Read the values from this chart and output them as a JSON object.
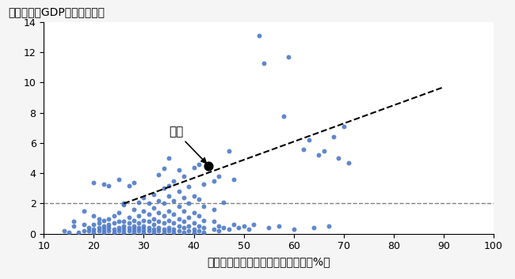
{
  "title_y": "一人あたりGDP（万米ドル）",
  "title_x": "金融リテラシーのある成人の割合（%）",
  "japan_label": "日本",
  "japan_x": 43,
  "japan_y": 4.5,
  "scatter_color": "#4472C4",
  "japan_color": "#000000",
  "hline_y": 2.0,
  "hline_color": "#808080",
  "trend_x": [
    26,
    90
  ],
  "trend_y": [
    2.0,
    9.7
  ],
  "xlim": [
    10,
    100
  ],
  "ylim": [
    0,
    14
  ],
  "xticks": [
    10,
    20,
    30,
    40,
    50,
    60,
    70,
    80,
    90,
    100
  ],
  "yticks": [
    0,
    2,
    4,
    6,
    8,
    10,
    12,
    14
  ],
  "scatter_data": [
    [
      14,
      0.2
    ],
    [
      15,
      0.1
    ],
    [
      16,
      0.5
    ],
    [
      16,
      0.8
    ],
    [
      17,
      0.1
    ],
    [
      18,
      0.2
    ],
    [
      18,
      0.6
    ],
    [
      18,
      1.5
    ],
    [
      19,
      0.2
    ],
    [
      19,
      0.4
    ],
    [
      20,
      0.1
    ],
    [
      20,
      0.3
    ],
    [
      20,
      0.6
    ],
    [
      20,
      1.2
    ],
    [
      20,
      3.4
    ],
    [
      21,
      0.2
    ],
    [
      21,
      0.4
    ],
    [
      21,
      0.7
    ],
    [
      21,
      1.0
    ],
    [
      22,
      0.1
    ],
    [
      22,
      0.3
    ],
    [
      22,
      0.5
    ],
    [
      22,
      0.9
    ],
    [
      22,
      3.3
    ],
    [
      23,
      0.2
    ],
    [
      23,
      0.4
    ],
    [
      23,
      0.6
    ],
    [
      23,
      1.0
    ],
    [
      23,
      3.2
    ],
    [
      24,
      0.1
    ],
    [
      24,
      0.3
    ],
    [
      24,
      0.7
    ],
    [
      24,
      1.2
    ],
    [
      25,
      0.2
    ],
    [
      25,
      0.4
    ],
    [
      25,
      0.8
    ],
    [
      25,
      1.4
    ],
    [
      25,
      3.6
    ],
    [
      26,
      0.1
    ],
    [
      26,
      0.3
    ],
    [
      26,
      0.5
    ],
    [
      26,
      0.8
    ],
    [
      26,
      1.9
    ],
    [
      26,
      2.0
    ],
    [
      27,
      0.2
    ],
    [
      27,
      0.4
    ],
    [
      27,
      0.7
    ],
    [
      27,
      1.1
    ],
    [
      27,
      3.2
    ],
    [
      28,
      0.1
    ],
    [
      28,
      0.3
    ],
    [
      28,
      0.5
    ],
    [
      28,
      0.9
    ],
    [
      28,
      1.6
    ],
    [
      28,
      3.4
    ],
    [
      29,
      0.2
    ],
    [
      29,
      0.4
    ],
    [
      29,
      0.7
    ],
    [
      29,
      1.2
    ],
    [
      29,
      2.1
    ],
    [
      30,
      0.1
    ],
    [
      30,
      0.3
    ],
    [
      30,
      0.5
    ],
    [
      30,
      0.9
    ],
    [
      30,
      1.5
    ],
    [
      30,
      2.4
    ],
    [
      31,
      0.2
    ],
    [
      31,
      0.4
    ],
    [
      31,
      0.8
    ],
    [
      31,
      1.3
    ],
    [
      31,
      2.0
    ],
    [
      32,
      0.1
    ],
    [
      32,
      0.3
    ],
    [
      32,
      0.6
    ],
    [
      32,
      1.0
    ],
    [
      32,
      1.7
    ],
    [
      32,
      2.6
    ],
    [
      33,
      0.2
    ],
    [
      33,
      0.4
    ],
    [
      33,
      0.8
    ],
    [
      33,
      1.4
    ],
    [
      33,
      2.2
    ],
    [
      33,
      3.9
    ],
    [
      34,
      0.1
    ],
    [
      34,
      0.3
    ],
    [
      34,
      0.7
    ],
    [
      34,
      1.2
    ],
    [
      34,
      2.0
    ],
    [
      34,
      3.0
    ],
    [
      34,
      4.3
    ],
    [
      35,
      0.2
    ],
    [
      35,
      0.4
    ],
    [
      35,
      0.9
    ],
    [
      35,
      1.5
    ],
    [
      35,
      2.5
    ],
    [
      35,
      3.2
    ],
    [
      35,
      5.0
    ],
    [
      36,
      0.1
    ],
    [
      36,
      0.3
    ],
    [
      36,
      0.7
    ],
    [
      36,
      1.3
    ],
    [
      36,
      2.2
    ],
    [
      36,
      3.5
    ],
    [
      37,
      0.2
    ],
    [
      37,
      0.5
    ],
    [
      37,
      1.0
    ],
    [
      37,
      1.8
    ],
    [
      37,
      2.8
    ],
    [
      37,
      4.2
    ],
    [
      38,
      0.1
    ],
    [
      38,
      0.4
    ],
    [
      38,
      0.8
    ],
    [
      38,
      1.5
    ],
    [
      38,
      2.4
    ],
    [
      38,
      3.8
    ],
    [
      39,
      0.2
    ],
    [
      39,
      0.5
    ],
    [
      39,
      1.1
    ],
    [
      39,
      2.0
    ],
    [
      39,
      3.1
    ],
    [
      40,
      0.1
    ],
    [
      40,
      0.3
    ],
    [
      40,
      0.7
    ],
    [
      40,
      1.4
    ],
    [
      40,
      2.5
    ],
    [
      40,
      4.4
    ],
    [
      41,
      0.2
    ],
    [
      41,
      0.5
    ],
    [
      41,
      1.2
    ],
    [
      41,
      2.3
    ],
    [
      41,
      4.6
    ],
    [
      42,
      0.1
    ],
    [
      42,
      0.4
    ],
    [
      42,
      0.9
    ],
    [
      42,
      1.8
    ],
    [
      42,
      3.3
    ],
    [
      44,
      0.3
    ],
    [
      44,
      0.8
    ],
    [
      44,
      1.6
    ],
    [
      44,
      3.5
    ],
    [
      45,
      0.2
    ],
    [
      45,
      0.5
    ],
    [
      45,
      3.8
    ],
    [
      46,
      0.4
    ],
    [
      46,
      2.1
    ],
    [
      47,
      0.3
    ],
    [
      47,
      5.5
    ],
    [
      48,
      0.6
    ],
    [
      48,
      3.6
    ],
    [
      49,
      0.4
    ],
    [
      50,
      0.5
    ],
    [
      51,
      0.3
    ],
    [
      52,
      0.6
    ],
    [
      53,
      13.1
    ],
    [
      54,
      11.3
    ],
    [
      55,
      0.4
    ],
    [
      57,
      0.5
    ],
    [
      58,
      7.8
    ],
    [
      59,
      11.7
    ],
    [
      60,
      0.3
    ],
    [
      62,
      5.6
    ],
    [
      63,
      6.2
    ],
    [
      64,
      0.4
    ],
    [
      65,
      5.2
    ],
    [
      66,
      5.5
    ],
    [
      67,
      0.5
    ],
    [
      68,
      6.4
    ],
    [
      69,
      5.0
    ],
    [
      70,
      7.1
    ],
    [
      71,
      4.7
    ]
  ],
  "background_color": "#f5f5f5",
  "plot_bg": "#ffffff"
}
